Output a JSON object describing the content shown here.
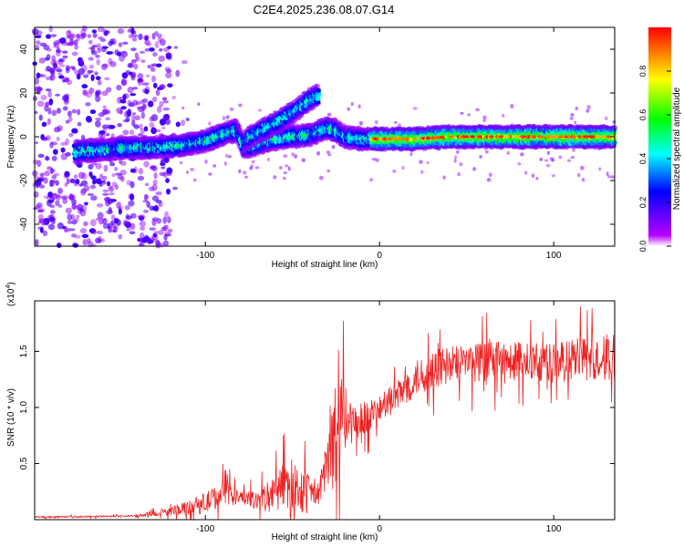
{
  "title": "C2E4.2025.236.08.07.G14",
  "chart_data": [
    {
      "type": "heatmap",
      "name": "spectrogram",
      "xlabel": "Height of straight line (km)",
      "ylabel": "Frequency (Hz)",
      "xlim": [
        -198,
        135
      ],
      "ylim": [
        -50,
        50
      ],
      "xticks": [
        -100,
        0,
        100
      ],
      "xtick_labels": [
        "-100",
        "0",
        "100"
      ],
      "yticks": [
        -40,
        -20,
        0,
        20,
        40
      ],
      "ytick_labels": [
        "-40",
        "-20",
        "0",
        "20",
        "40"
      ],
      "colorbar": {
        "label": "Normalized spectral amplitude",
        "range": [
          0,
          1
        ],
        "ticks": [
          0.0,
          0.2,
          0.4,
          0.6,
          0.8
        ],
        "tick_labels": [
          "0.0",
          "0.2",
          "0.4",
          "0.6",
          "0.8"
        ],
        "colors": [
          "#ffffff",
          "#b800ff",
          "#0000ff",
          "#00ffff",
          "#00ff00",
          "#ffff00",
          "#ff0000"
        ]
      },
      "ridges": [
        {
          "name": "main",
          "x": [
            -175,
            -160,
            -145,
            -130,
            -115,
            -100,
            -90,
            -82,
            -78,
            -70,
            -60,
            -50,
            -40,
            -30,
            -25,
            -20,
            -10,
            0,
            20,
            40,
            60,
            80,
            100,
            120,
            135
          ],
          "y": [
            -7,
            -6,
            -5,
            -5,
            -4,
            -2,
            1,
            3,
            -5,
            -3,
            -1,
            0,
            1,
            4,
            3,
            0,
            -1,
            -1,
            -1,
            0,
            0,
            0,
            0,
            0,
            0
          ]
        },
        {
          "name": "upper",
          "x": [
            -78,
            -70,
            -60,
            -50,
            -45,
            -40,
            -35
          ],
          "y": [
            -2,
            2,
            6,
            11,
            14,
            17,
            19
          ]
        }
      ]
    },
    {
      "type": "line",
      "name": "snr",
      "xlabel": "Height of straight line (km)",
      "ylabel": "SNR (10 * v/v)",
      "scale_label": "(x10",
      "scale_exp": "4",
      "scale_close": ")",
      "xlim": [
        -198,
        135
      ],
      "ylim": [
        0,
        1.95
      ],
      "xticks": [
        -100,
        0,
        100
      ],
      "xtick_labels": [
        "-100",
        "0",
        "100"
      ],
      "yticks": [
        0.5,
        1.0,
        1.5
      ],
      "ytick_labels": [
        "0.5",
        "1.0",
        "1.5"
      ],
      "color": "#ee2222",
      "envelope": {
        "x": [
          -198,
          -140,
          -120,
          -100,
          -90,
          -80,
          -70,
          -60,
          -55,
          -50,
          -45,
          -40,
          -35,
          -30,
          -25,
          -20,
          -15,
          -10,
          0,
          10,
          20,
          30,
          40,
          50,
          60,
          80,
          100,
          120,
          135
        ],
        "base": [
          0.02,
          0.03,
          0.06,
          0.12,
          0.2,
          0.18,
          0.14,
          0.18,
          0.25,
          0.25,
          0.2,
          0.2,
          0.18,
          0.45,
          0.55,
          0.8,
          0.8,
          0.85,
          0.95,
          1.05,
          1.2,
          1.28,
          1.32,
          1.35,
          1.35,
          1.37,
          1.35,
          1.37,
          1.38
        ],
        "amp": [
          0.01,
          0.01,
          0.05,
          0.12,
          0.14,
          0.08,
          0.1,
          0.22,
          0.25,
          0.28,
          0.25,
          0.2,
          0.15,
          0.3,
          0.55,
          0.45,
          0.2,
          0.2,
          0.15,
          0.18,
          0.2,
          0.22,
          0.22,
          0.22,
          0.22,
          0.22,
          0.22,
          0.26,
          0.28
        ]
      }
    }
  ]
}
